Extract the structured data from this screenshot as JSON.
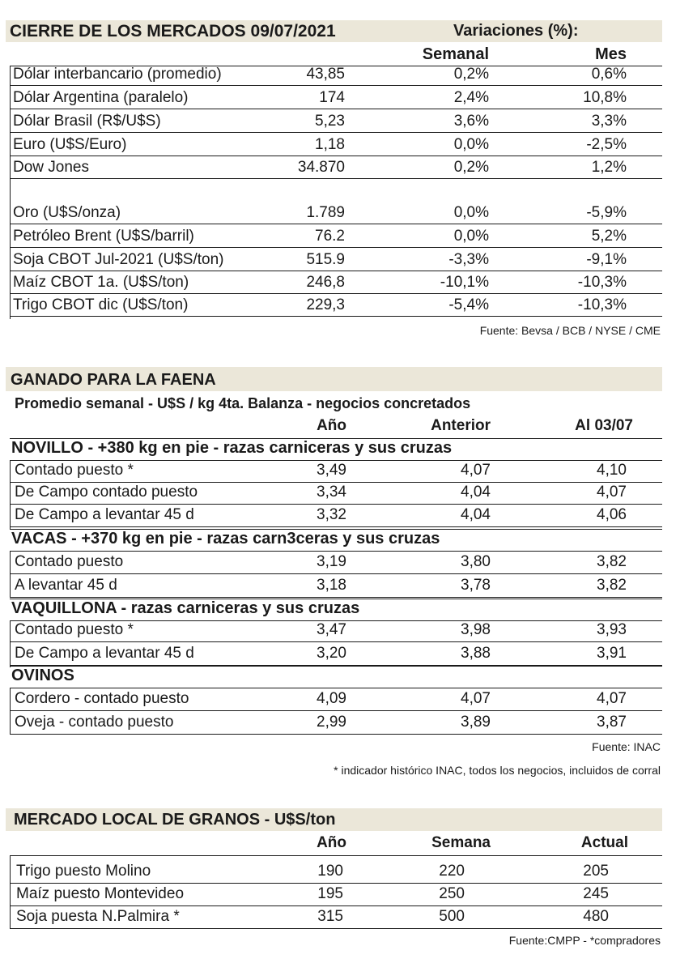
{
  "mercados": {
    "title": "CIERRE DE LOS MERCADOS 09/07/2021",
    "variaciones_label": "Variaciones (%):",
    "col_semanal": "Semanal",
    "col_mes": "Mes",
    "rows": [
      {
        "name": "Dólar interbancario (promedio)",
        "value": "43,85",
        "semanal": "0,2%",
        "mes": "0,6%"
      },
      {
        "name": "Dólar Argentina (paralelo)",
        "value": "174",
        "semanal": "2,4%",
        "mes": "10,8%"
      },
      {
        "name": "Dólar Brasil (R$/U$S)",
        "value": "5,23",
        "semanal": "3,6%",
        "mes": "3,3%"
      },
      {
        "name": "Euro (U$S/Euro)",
        "value": "1,18",
        "semanal": "0,0%",
        "mes": "-2,5%"
      },
      {
        "name": "Dow Jones",
        "value": "34.870",
        "semanal": "0,2%",
        "mes": "1,2%"
      },
      {
        "name": "Oro (U$S/onza)",
        "value": "1.789",
        "semanal": "0,0%",
        "mes": "-5,9%"
      },
      {
        "name": "Petróleo Brent (U$S/barril)",
        "value": "76.2",
        "semanal": "0,0%",
        "mes": "5,2%"
      },
      {
        "name": "Soja CBOT Jul-2021 (U$S/ton)",
        "value": "515.9",
        "semanal": "-3,3%",
        "mes": "-9,1%"
      },
      {
        "name": "Maíz CBOT 1a. (U$S/ton)",
        "value": "246,8",
        "semanal": "-10,1%",
        "mes": "-10,3%"
      },
      {
        "name": "Trigo CBOT dic (U$S/ton)",
        "value": "229,3",
        "semanal": "-5,4%",
        "mes": "-10,3%"
      }
    ],
    "source": "Fuente: Bevsa / BCB / NYSE / CME"
  },
  "ganado": {
    "title": "GANADO PARA LA FAENA",
    "subtitle": "Promedio semanal - U$S / kg 4ta. Balanza - negocios concretados",
    "col_ano": "Año",
    "col_anterior": "Anterior",
    "col_al": "Al 03/07",
    "groups": [
      {
        "title": "NOVILLO",
        "desc": " - +380 kg en pie - razas carniceras y sus cruzas",
        "rows": [
          {
            "name": "Contado puesto *",
            "ano": "3,49",
            "anterior": "4,07",
            "al": "4,10"
          },
          {
            "name": "De Campo contado puesto",
            "ano": "3,34",
            "anterior": "4,04",
            "al": "4,07"
          },
          {
            "name": "De Campo a levantar 45 d",
            "ano": "3,32",
            "anterior": "4,04",
            "al": "4,06"
          }
        ]
      },
      {
        "title": "VACAS",
        "desc": " - +370 kg en pie - razas carn3ceras y sus cruzas",
        "rows": [
          {
            "name": "Contado puesto",
            "ano": "3,19",
            "anterior": "3,80",
            "al": "3,82"
          },
          {
            "name": "A levantar 45 d",
            "ano": "3,18",
            "anterior": "3,78",
            "al": "3,82"
          }
        ]
      },
      {
        "title": "VAQUILLONA",
        "desc": " - razas carniceras y sus cruzas",
        "rows": [
          {
            "name": "Contado puesto *",
            "ano": "3,47",
            "anterior": "3,98",
            "al": "3,93"
          },
          {
            "name": "De Campo a levantar 45 d",
            "ano": "3,20",
            "anterior": "3,88",
            "al": "3,91"
          }
        ]
      },
      {
        "title": "OVINOS",
        "desc": "",
        "rows": [
          {
            "name": "Cordero - contado puesto",
            "ano": "4,09",
            "anterior": "4,07",
            "al": "4,07"
          },
          {
            "name": "Oveja - contado puesto",
            "ano": "2,99",
            "anterior": "3,89",
            "al": "3,87"
          }
        ]
      }
    ],
    "source": "Fuente: INAC",
    "footnote": "* indicador histórico INAC, todos los negocios, incluidos de corral"
  },
  "granos": {
    "title": "MERCADO LOCAL DE GRANOS - U$S/ton",
    "col_ano": "Año",
    "col_semana": "Semana",
    "col_actual": "Actual",
    "rows": [
      {
        "name": "Trigo puesto Molino",
        "ano": "190",
        "semana": "220",
        "actual": "205"
      },
      {
        "name": "Maíz puesto Montevideo",
        "ano": "195",
        "semana": "250",
        "actual": "245"
      },
      {
        "name": "Soja puesta N.Palmira *",
        "ano": "315",
        "semana": "500",
        "actual": "480"
      }
    ],
    "source": "Fuente:CMPP - *compradores"
  }
}
